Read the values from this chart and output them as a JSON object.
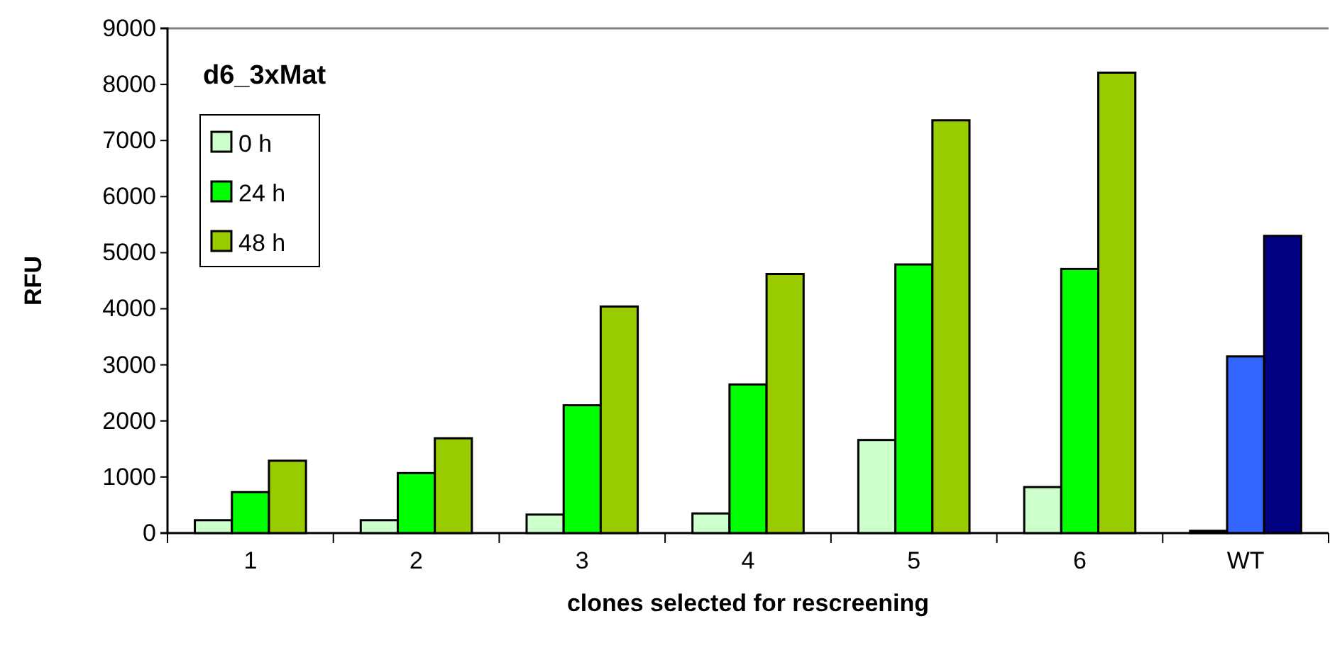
{
  "chart_data": {
    "type": "bar",
    "title": "d6_3xMat",
    "xlabel": "clones selected for rescreening",
    "ylabel": "RFU",
    "categories": [
      "1",
      "2",
      "3",
      "4",
      "5",
      "6",
      "WT"
    ],
    "series": [
      {
        "name": "0 h",
        "color": "#ccffcc",
        "colors": [
          "#ccffcc",
          "#ccffcc",
          "#ccffcc",
          "#ccffcc",
          "#ccffcc",
          "#ccffcc",
          "#000080"
        ],
        "values": [
          230,
          230,
          330,
          350,
          1660,
          820,
          40
        ]
      },
      {
        "name": "24 h",
        "color": "#00ff00",
        "colors": [
          "#00ff00",
          "#00ff00",
          "#00ff00",
          "#00ff00",
          "#00ff00",
          "#00ff00",
          "#3366ff"
        ],
        "values": [
          730,
          1070,
          2280,
          2650,
          4790,
          4710,
          3150
        ]
      },
      {
        "name": "48 h",
        "color": "#99cc00",
        "colors": [
          "#99cc00",
          "#99cc00",
          "#99cc00",
          "#99cc00",
          "#99cc00",
          "#99cc00",
          "#000080"
        ],
        "values": [
          1290,
          1690,
          4040,
          4620,
          7360,
          8210,
          5300
        ]
      }
    ],
    "ylim": [
      0,
      9000
    ],
    "yticks": [
      0,
      1000,
      2000,
      3000,
      4000,
      5000,
      6000,
      7000,
      8000,
      9000
    ],
    "legend": "top left",
    "grid": false
  }
}
